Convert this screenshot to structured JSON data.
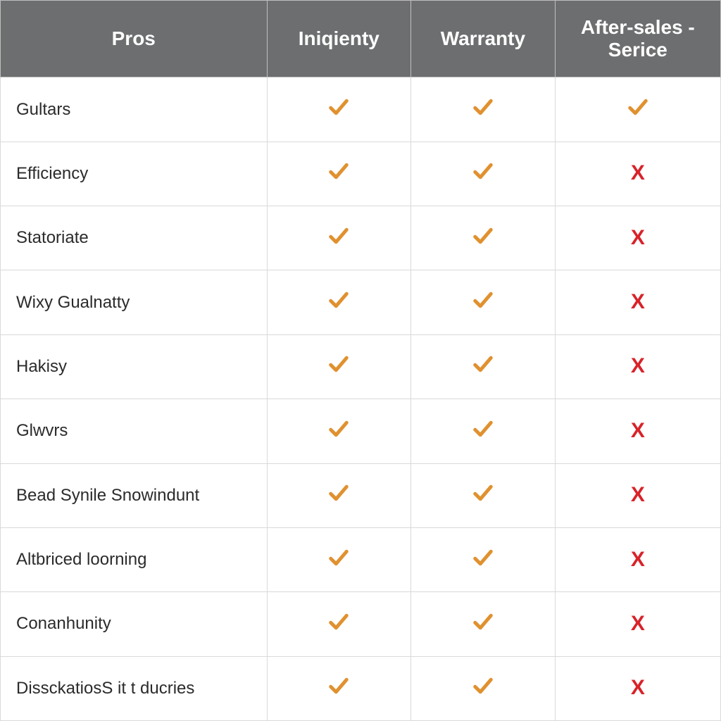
{
  "table": {
    "type": "table",
    "header_bg": "#6d6e70",
    "header_fg": "#ffffff",
    "header_fontsize": 28,
    "header_fontweight": "bold",
    "row_fontsize": 24,
    "row_fg": "#2b2b2b",
    "border_color": "#d9d9d9",
    "check_color": "#e0912f",
    "cross_color": "#d8232a",
    "column_widths_pct": [
      37,
      20,
      20,
      23
    ],
    "columns": [
      "Pros",
      "Iniqienty",
      "Warranty",
      "After-sales - Serice"
    ],
    "rows": [
      {
        "label": "Gultars",
        "cells": [
          "check",
          "check",
          "check"
        ]
      },
      {
        "label": "Efficiency",
        "cells": [
          "check",
          "check",
          "cross"
        ]
      },
      {
        "label": "Statoriate",
        "cells": [
          "check",
          "check",
          "cross"
        ]
      },
      {
        "label": "Wixy Gualnatty",
        "cells": [
          "check",
          "check",
          "cross"
        ]
      },
      {
        "label": "Hakisy",
        "cells": [
          "check",
          "check",
          "cross"
        ]
      },
      {
        "label": "Glwvrs",
        "cells": [
          "check",
          "check",
          "cross"
        ]
      },
      {
        "label": "Bead Synile Snowindunt",
        "cells": [
          "check",
          "check",
          "cross"
        ]
      },
      {
        "label": "Altbriced loorning",
        "cells": [
          "check",
          "check",
          "cross"
        ]
      },
      {
        "label": "Conanhunity",
        "cells": [
          "check",
          "check",
          "cross"
        ]
      },
      {
        "label": "DissckatiosS it t ducries",
        "cells": [
          "check",
          "check",
          "cross"
        ]
      }
    ]
  }
}
